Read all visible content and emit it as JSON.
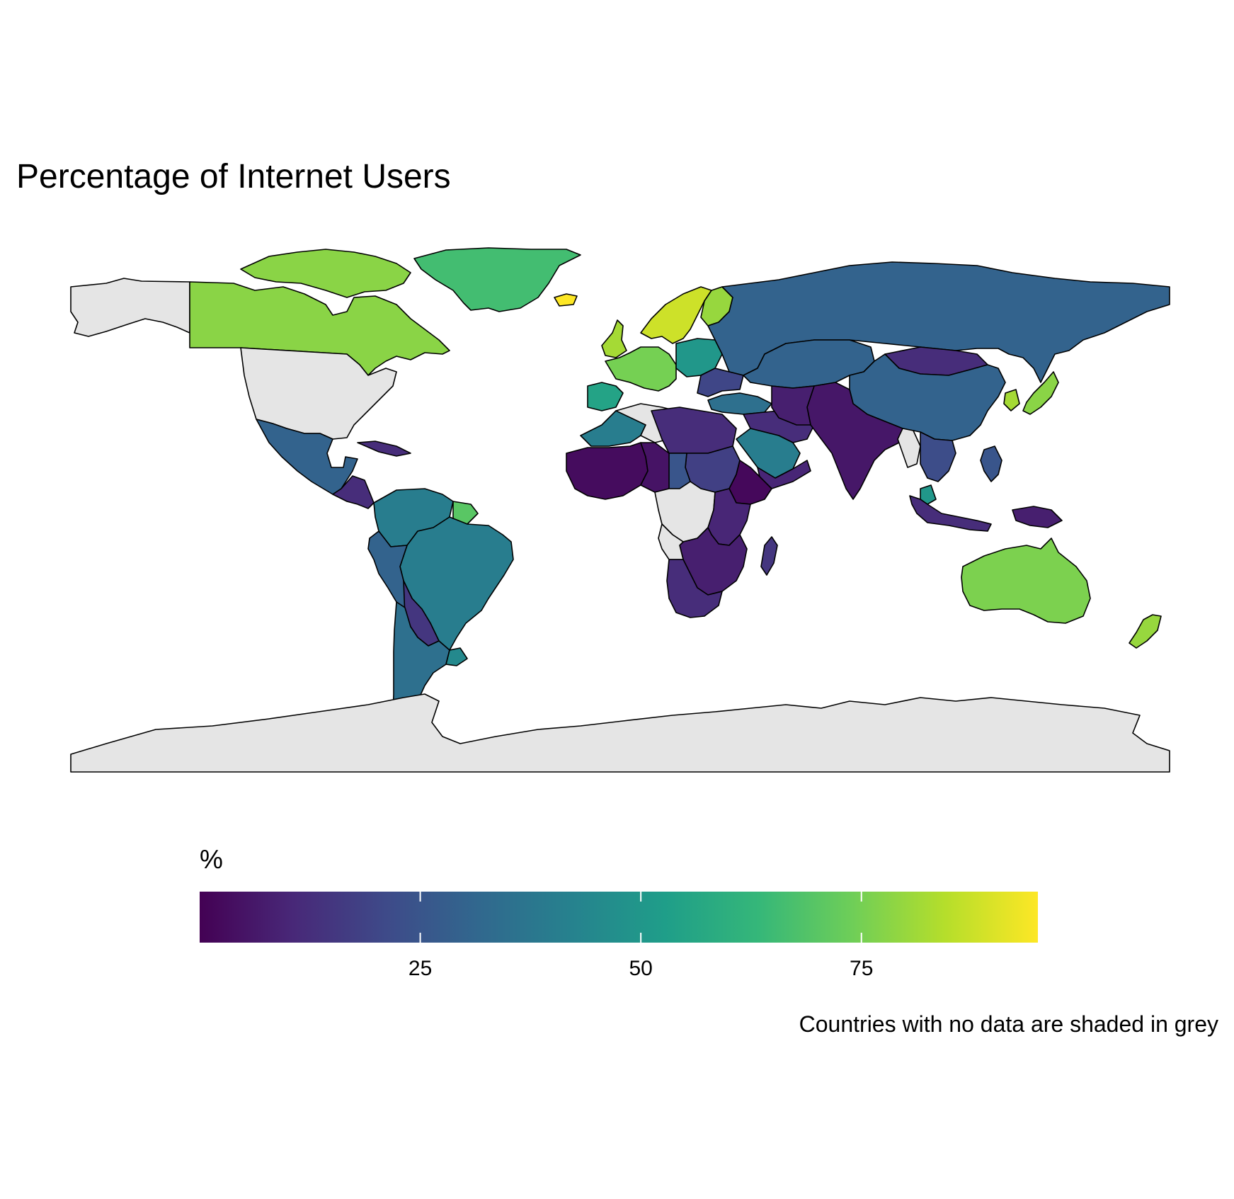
{
  "title": "Percentage of Internet Users",
  "caption": "Countries with no data are shaded in grey",
  "chart_data": {
    "type": "choropleth",
    "title": "Percentage of Internet Users",
    "legend": {
      "title": "%",
      "placement": "bottom",
      "range": [
        0,
        95
      ],
      "ticks": [
        25,
        50,
        75
      ],
      "palette": "viridis",
      "colors": [
        "#440154",
        "#482878",
        "#3e4a89",
        "#31688e",
        "#26828e",
        "#1f9e89",
        "#35b779",
        "#6ece58",
        "#b5de2b",
        "#fde725"
      ]
    },
    "no_data_color": "#e5e5e5",
    "regions": [
      {
        "name": "Alaska",
        "value": null
      },
      {
        "name": "Canada",
        "value": 78
      },
      {
        "name": "Arctic Islands",
        "value": 78
      },
      {
        "name": "United States",
        "value": null
      },
      {
        "name": "Greenland",
        "value": 66
      },
      {
        "name": "Iceland",
        "value": 95
      },
      {
        "name": "Mexico",
        "value": 30
      },
      {
        "name": "Central America",
        "value": 12
      },
      {
        "name": "Cuba",
        "value": 12
      },
      {
        "name": "Colombia/Venezuela",
        "value": 40
      },
      {
        "name": "Guianas",
        "value": 70
      },
      {
        "name": "Brazil",
        "value": 40
      },
      {
        "name": "Peru/Ecuador",
        "value": 30
      },
      {
        "name": "Bolivia/Paraguay",
        "value": 15
      },
      {
        "name": "Argentina/Chile",
        "value": 35
      },
      {
        "name": "Uruguay",
        "value": 45
      },
      {
        "name": "Scandinavia",
        "value": 88
      },
      {
        "name": "Finland",
        "value": 80
      },
      {
        "name": "United Kingdom",
        "value": 82
      },
      {
        "name": "Western Europe",
        "value": 75
      },
      {
        "name": "Iberia",
        "value": 55
      },
      {
        "name": "Eastern Europe",
        "value": 50
      },
      {
        "name": "Russia",
        "value": 30
      },
      {
        "name": "Ukraine/Balkans",
        "value": 20
      },
      {
        "name": "Turkey",
        "value": 35
      },
      {
        "name": "Middle East",
        "value": 12
      },
      {
        "name": "Saudi Arabia",
        "value": 40
      },
      {
        "name": "Yemen/Oman",
        "value": 10
      },
      {
        "name": "Kazakhstan/Central Asia",
        "value": 30
      },
      {
        "name": "Mongolia",
        "value": 12
      },
      {
        "name": "China",
        "value": 30
      },
      {
        "name": "Japan",
        "value": 78
      },
      {
        "name": "Korea",
        "value": 82
      },
      {
        "name": "India/South Asia",
        "value": 6
      },
      {
        "name": "Afghanistan/Iran",
        "value": 8
      },
      {
        "name": "Myanmar",
        "value": null
      },
      {
        "name": "Mainland Southeast Asia",
        "value": 22
      },
      {
        "name": "Malaysia",
        "value": 50
      },
      {
        "name": "Indonesia",
        "value": 12
      },
      {
        "name": "Philippines",
        "value": 25
      },
      {
        "name": "New Guinea",
        "value": 8
      },
      {
        "name": "Australia",
        "value": 76
      },
      {
        "name": "New Zealand",
        "value": 80
      },
      {
        "name": "North Africa West",
        "value": 40
      },
      {
        "name": "Algeria/Libya",
        "value": null
      },
      {
        "name": "Egypt/Libya East",
        "value": 12
      },
      {
        "name": "West Africa",
        "value": 3
      },
      {
        "name": "Sahel",
        "value": 5
      },
      {
        "name": "Sudan",
        "value": 18
      },
      {
        "name": "Chad",
        "value": 25
      },
      {
        "name": "Ethiopia/Horn",
        "value": 2
      },
      {
        "name": "Central Africa",
        "value": null
      },
      {
        "name": "East Africa",
        "value": 10
      },
      {
        "name": "Southern Africa",
        "value": 8
      },
      {
        "name": "Angola",
        "value": null
      },
      {
        "name": "South Africa",
        "value": 12
      },
      {
        "name": "Madagascar",
        "value": 15
      },
      {
        "name": "Antarctica",
        "value": null
      }
    ]
  }
}
